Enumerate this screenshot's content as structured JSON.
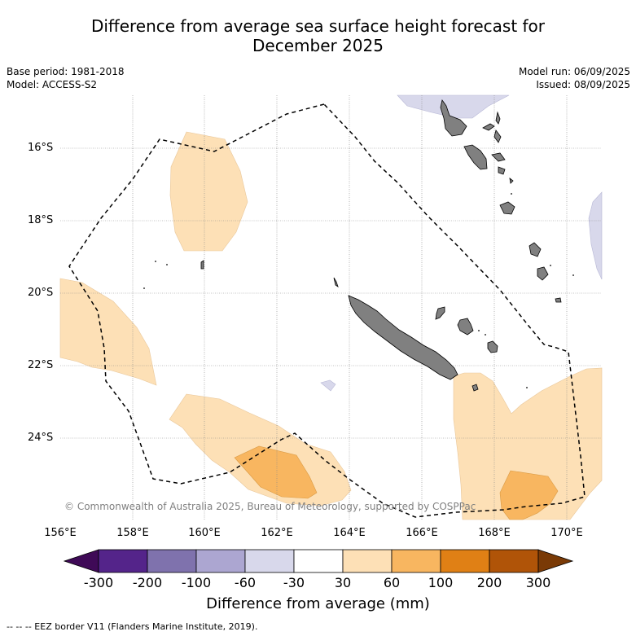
{
  "title_line1": "Difference from average sea surface height forecast for",
  "title_line2": "December 2025",
  "meta_left": {
    "base_period": "Base period: 1981-2018",
    "model": "Model: ACCESS-S2"
  },
  "meta_right": {
    "model_run": "Model run: 06/09/2025",
    "issued": "Issued: 08/09/2025"
  },
  "lat_labels": [
    "16°S",
    "18°S",
    "20°S",
    "22°S",
    "24°S"
  ],
  "lon_labels": [
    "156°E",
    "158°E",
    "160°E",
    "162°E",
    "164°E",
    "166°E",
    "168°E",
    "170°E"
  ],
  "copyright": "© Commonwealth of Australia 2025, Bureau of Meteorology, supported by COSPPac",
  "colorbar": {
    "labels": [
      "-300",
      "-200",
      "-100",
      "-60",
      "-30",
      "30",
      "60",
      "100",
      "200",
      "300"
    ],
    "colors": [
      "#3f0a57",
      "#54248a",
      "#7f72ad",
      "#aca6d1",
      "#d8d8eb",
      "#ffffff",
      "#fde0b6",
      "#f8b660",
      "#e08015",
      "#b05408",
      "#7a3a06"
    ],
    "title": "Difference from average (mm)"
  },
  "footnote": "-- -- -- EEZ border V11 (Flanders Marine Institute, 2019).",
  "map_colors": {
    "anomaly_30_60": "#fde0b6",
    "anomaly_60_100": "#f8b660",
    "anomaly_neg_30_60": "#d8d8eb",
    "land": "#808080"
  }
}
